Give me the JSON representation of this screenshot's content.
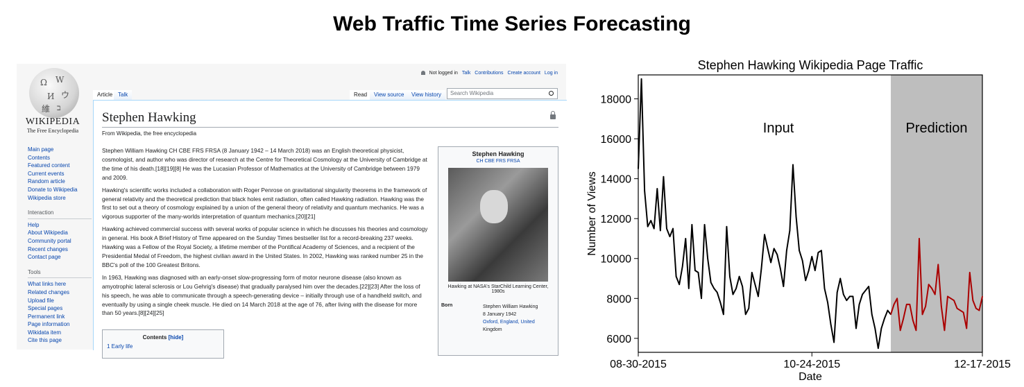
{
  "page": {
    "title": "Web Traffic Time Series Forecasting"
  },
  "wiki": {
    "logo": {
      "wordmark": "WIKIPEDIA",
      "tagline": "The Free Encyclopedia"
    },
    "top_links": [
      "Not logged in",
      "Talk",
      "Contributions",
      "Create account",
      "Log in"
    ],
    "tabs_left": [
      "Article",
      "Talk"
    ],
    "tabs_right": [
      "Read",
      "View source",
      "View history"
    ],
    "search": {
      "placeholder": "Search Wikipedia"
    },
    "sidebar": {
      "main": [
        "Main page",
        "Contents",
        "Featured content",
        "Current events",
        "Random article",
        "Donate to Wikipedia",
        "Wikipedia store"
      ],
      "interaction_heading": "Interaction",
      "interaction": [
        "Help",
        "About Wikipedia",
        "Community portal",
        "Recent changes",
        "Contact page"
      ],
      "tools_heading": "Tools",
      "tools": [
        "What links here",
        "Related changes",
        "Upload file",
        "Special pages",
        "Permanent link",
        "Page information",
        "Wikidata item",
        "Cite this page"
      ]
    },
    "article": {
      "title": "Stephen Hawking",
      "from": "From Wikipedia, the free encyclopedia",
      "paragraphs": [
        "Stephen William Hawking CH CBE FRS FRSA (8 January 1942 – 14 March 2018) was an English theoretical physicist, cosmologist, and author who was director of research at the Centre for Theoretical Cosmology at the University of Cambridge at the time of his death.[18][19][8] He was the Lucasian Professor of Mathematics at the University of Cambridge between 1979 and 2009.",
        "Hawking's scientific works included a collaboration with Roger Penrose on gravitational singularity theorems in the framework of general relativity and the theoretical prediction that black holes emit radiation, often called Hawking radiation. Hawking was the first to set out a theory of cosmology explained by a union of the general theory of relativity and quantum mechanics. He was a vigorous supporter of the many-worlds interpretation of quantum mechanics.[20][21]",
        "Hawking achieved commercial success with several works of popular science in which he discusses his theories and cosmology in general. His book A Brief History of Time appeared on the Sunday Times bestseller list for a record-breaking 237 weeks. Hawking was a Fellow of the Royal Society, a lifetime member of the Pontifical Academy of Sciences, and a recipient of the Presidential Medal of Freedom, the highest civilian award in the United States. In 2002, Hawking was ranked number 25 in the BBC's poll of the 100 Greatest Britons.",
        "In 1963, Hawking was diagnosed with an early-onset slow-progressing form of motor neurone disease (also known as amyotrophic lateral sclerosis or Lou Gehrig's disease) that gradually paralysed him over the decades.[22][23] After the loss of his speech, he was able to communicate through a speech-generating device – initially through use of a handheld switch, and eventually by using a single cheek muscle. He died on 14 March 2018 at the age of 76, after living with the disease for more than 50 years.[8][24][25]"
      ],
      "toc": {
        "title": "Contents",
        "hide": "[hide]",
        "first_item": "1   Early life"
      }
    },
    "infobox": {
      "name": "Stephen Hawking",
      "honors": "CH CBE FRS FRSA",
      "caption": "Hawking at NASA's StarChild Learning Center, 1980s",
      "born_label": "Born",
      "born_lines": [
        "Stephen William Hawking",
        "8 January 1942",
        "Oxford, England, United",
        "Kingdom"
      ]
    }
  },
  "chart_data": {
    "type": "line",
    "title": "Stephen Hawking Wikipedia Page Traffic",
    "xlabel": "Date",
    "ylabel": "Number of Views",
    "x_ticks": [
      "08-30-2015",
      "10-24-2015",
      "12-17-2015"
    ],
    "y_ticks": [
      6000,
      8000,
      10000,
      12000,
      14000,
      16000,
      18000
    ],
    "ylim": [
      5300,
      19200
    ],
    "regions": [
      {
        "label": "Input",
        "shaded": false,
        "color": "#ffffff"
      },
      {
        "label": "Prediction",
        "shaded": true,
        "color": "#bebebe"
      }
    ],
    "series": [
      {
        "color": "#000000",
        "start_date": "08-30-2015",
        "values": [
          14500,
          19000,
          13400,
          11600,
          11900,
          11500,
          13500,
          11400,
          14100,
          11500,
          11100,
          11500,
          9100,
          8700,
          9600,
          11000,
          8500,
          11700,
          9400,
          9300,
          8000,
          11700,
          10000,
          8800,
          8500,
          8300,
          7800,
          7200,
          11600,
          9100,
          8200,
          8500,
          9100,
          8600,
          7200,
          7500,
          9300,
          8700,
          8100,
          9500,
          11200,
          10500,
          9800,
          10500,
          10200,
          9500,
          8600,
          10400,
          11400,
          14700,
          12100,
          10400,
          9900,
          8900,
          9400,
          10100,
          9400,
          10300,
          10400,
          8500,
          7800,
          6700,
          5800,
          8300,
          9000,
          8200,
          7900,
          8100,
          8100,
          6500,
          7700,
          8200,
          8400,
          8600,
          7200,
          6500,
          5500,
          6500,
          7000,
          7400,
          7200
        ]
      },
      {
        "color": "#aa0000",
        "start_date": "11-18-2015",
        "values": [
          7200,
          7700,
          8000,
          6400,
          7000,
          7700,
          7700,
          6900,
          6400,
          11000,
          7200,
          7600,
          8700,
          8500,
          8200,
          9700,
          7600,
          6400,
          8100,
          8000,
          7900,
          7500,
          7400,
          7300,
          6500,
          9300,
          7900,
          7500,
          7400,
          8100
        ]
      }
    ]
  }
}
